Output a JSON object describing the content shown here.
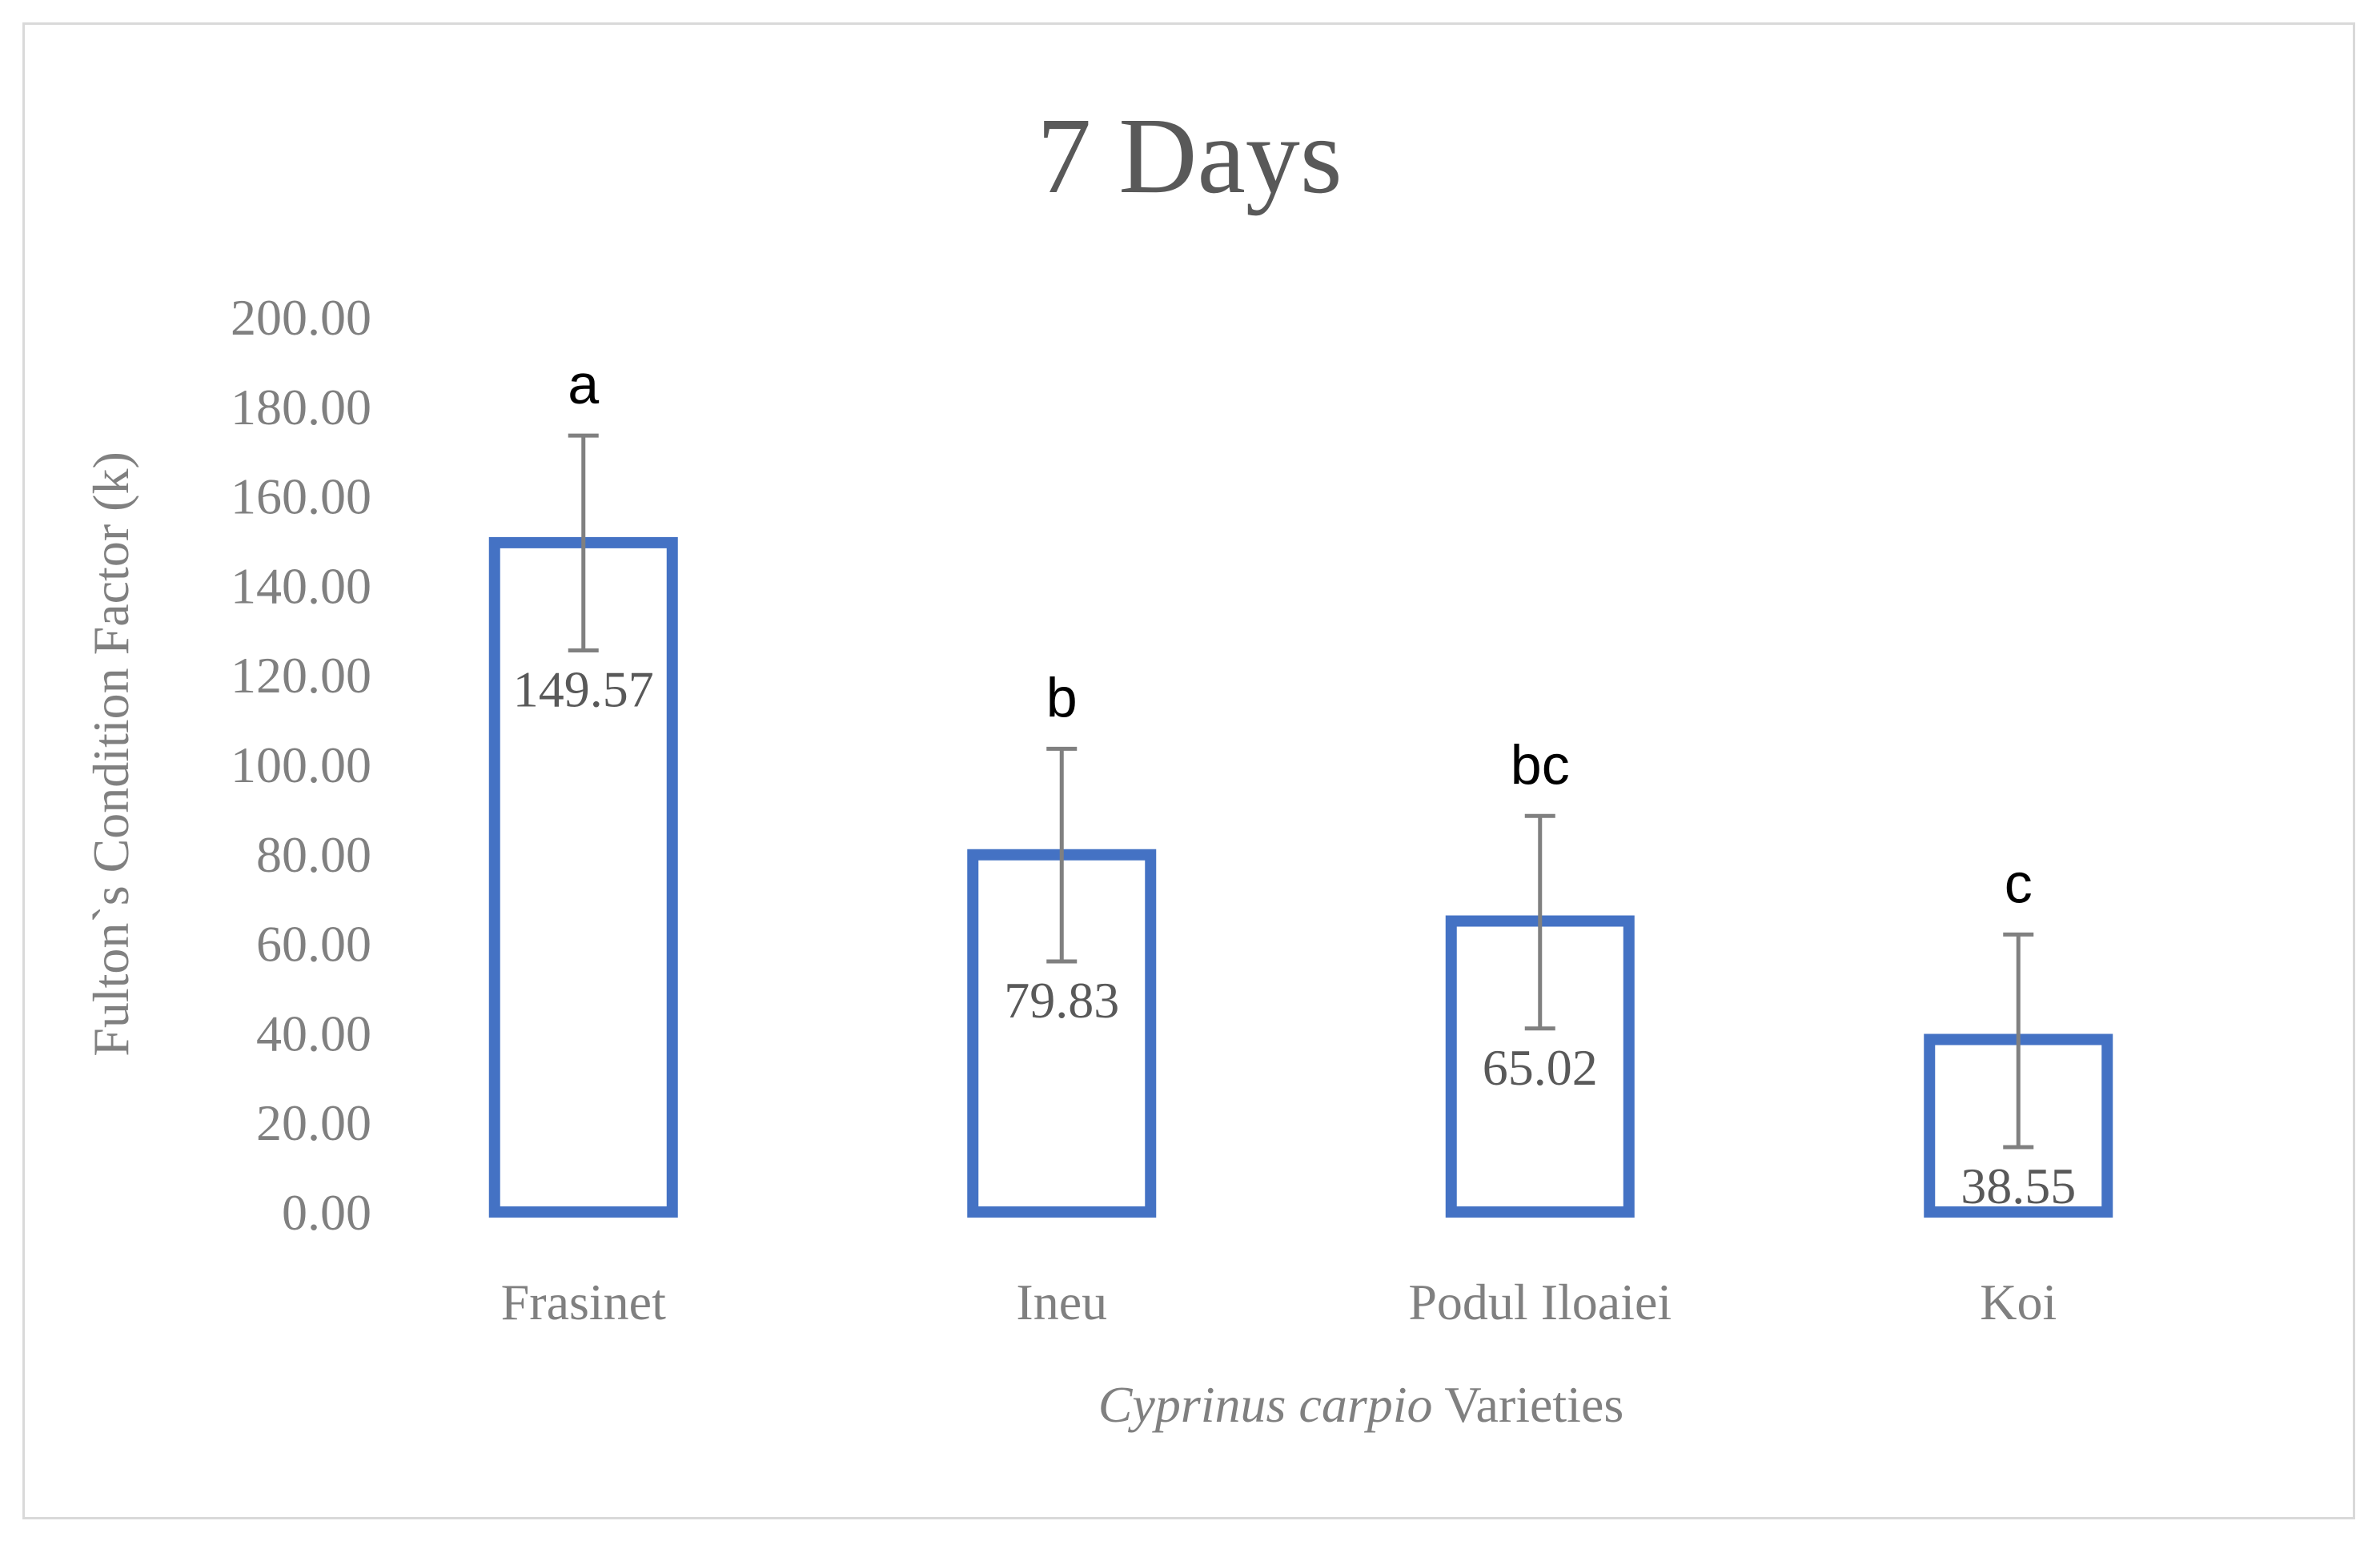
{
  "chart_data": {
    "type": "bar",
    "title": "7 Days",
    "categories": [
      "Frasinet",
      "Ineu",
      "Podul Iloaiei",
      "Koi"
    ],
    "values": [
      149.57,
      79.83,
      65.02,
      38.55
    ],
    "value_labels": [
      "149.57",
      "79.83",
      "65.02",
      "38.55"
    ],
    "error_bars": [
      {
        "low": 125.5,
        "high": 173.5
      },
      {
        "low": 56.0,
        "high": 103.5
      },
      {
        "low": 41.0,
        "high": 88.5
      },
      {
        "low": 14.5,
        "high": 62.0
      }
    ],
    "significance_labels": [
      "a",
      "b",
      "bc",
      "c"
    ],
    "ylabel": "Fulton`s Condition Factor (k)",
    "xlabel_italic": "Cyprinus carpio",
    "xlabel_rest": " Varieties",
    "ylim": [
      0,
      200
    ],
    "yticks": [
      0,
      20,
      40,
      60,
      80,
      100,
      120,
      140,
      160,
      180,
      200
    ],
    "ytick_labels": [
      "0.00",
      "20.00",
      "40.00",
      "60.00",
      "80.00",
      "100.00",
      "120.00",
      "140.00",
      "160.00",
      "180.00",
      "200.00"
    ],
    "grid": false,
    "legend": "none",
    "colors": {
      "bar_outline": "#4472c4",
      "bar_fill": "#ffffff",
      "error_bar": "#808080",
      "title": "#595959",
      "axis_text": "#808080"
    }
  }
}
